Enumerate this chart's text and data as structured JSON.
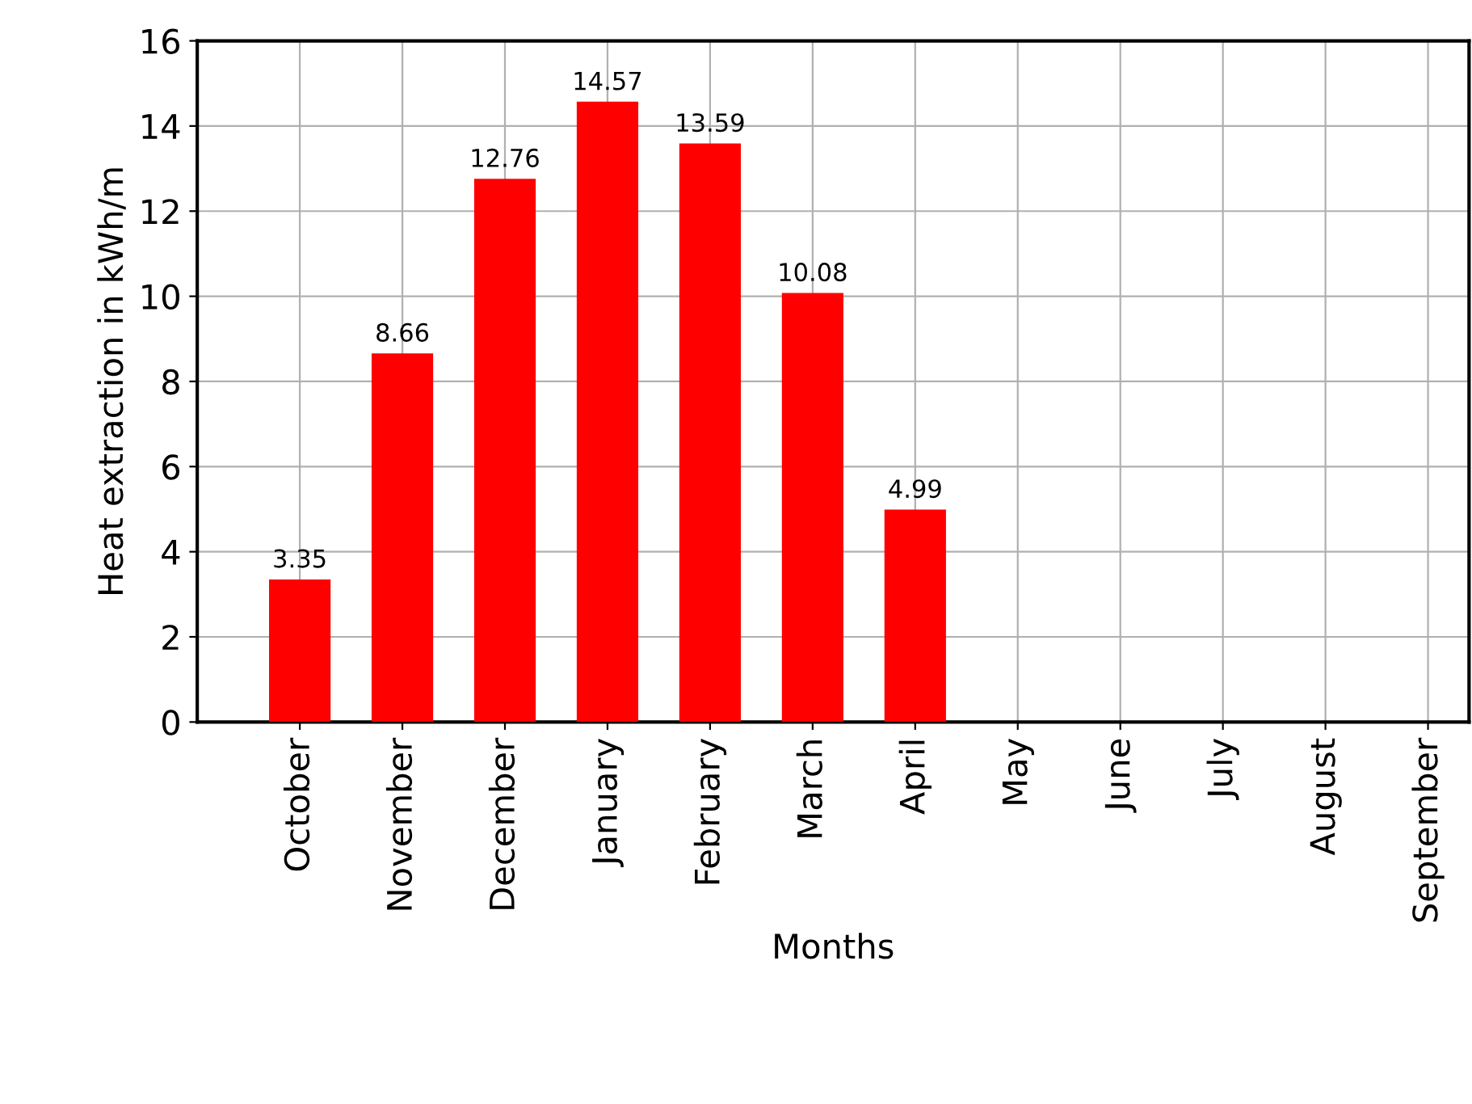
{
  "chart_data": {
    "type": "bar",
    "xlabel": "Months",
    "ylabel": "Heat extraction in kWh/m",
    "categories": [
      "October",
      "November",
      "December",
      "January",
      "February",
      "March",
      "April",
      "May",
      "June",
      "July",
      "August",
      "September"
    ],
    "values": [
      3.35,
      8.66,
      12.76,
      14.57,
      13.59,
      10.08,
      4.99,
      null,
      null,
      null,
      null,
      null
    ],
    "color": "#ff0000",
    "ylim": [
      0,
      16
    ],
    "yticks": [
      0,
      2,
      4,
      6,
      8,
      10,
      12,
      14,
      16
    ],
    "grid": true,
    "data_labels": true
  }
}
